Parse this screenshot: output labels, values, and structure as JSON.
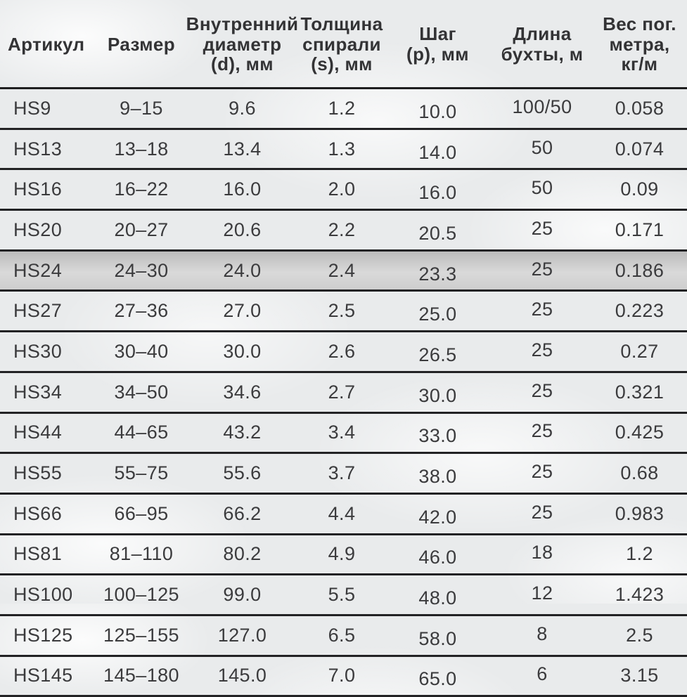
{
  "page": {
    "background_color": "#e9ebec",
    "line_color": "#1e1e1f",
    "text_color": "#3b3b3d",
    "highlight_row_color": "#c9c9c9"
  },
  "table": {
    "columns": [
      {
        "id": "article",
        "label": "Артикул"
      },
      {
        "id": "size",
        "label": "Размер"
      },
      {
        "id": "inner-diameter",
        "label": "Внутренний\nдиаметр\n(d), мм"
      },
      {
        "id": "spiral-thickness",
        "label": "Толщина\nспирали\n(s), мм"
      },
      {
        "id": "pitch",
        "label": "Шаг\n(p), мм"
      },
      {
        "id": "coil-length",
        "label": "Длина\nбухты, м"
      },
      {
        "id": "weight-per-meter",
        "label": "Вес пог.\nметра,\nкг/м"
      }
    ],
    "highlighted_row": "HS24",
    "rows": [
      [
        "HS9",
        "9–15",
        "9.6",
        "1.2",
        "10.0",
        "100/50",
        "0.058"
      ],
      [
        "HS13",
        "13–18",
        "13.4",
        "1.3",
        "14.0",
        "50",
        "0.074"
      ],
      [
        "HS16",
        "16–22",
        "16.0",
        "2.0",
        "16.0",
        "50",
        "0.09"
      ],
      [
        "HS20",
        "20–27",
        "20.6",
        "2.2",
        "20.5",
        "25",
        "0.171"
      ],
      [
        "HS24",
        "24–30",
        "24.0",
        "2.4",
        "23.3",
        "25",
        "0.186"
      ],
      [
        "HS27",
        "27–36",
        "27.0",
        "2.5",
        "25.0",
        "25",
        "0.223"
      ],
      [
        "HS30",
        "30–40",
        "30.0",
        "2.6",
        "26.5",
        "25",
        "0.27"
      ],
      [
        "HS34",
        "34–50",
        "34.6",
        "2.7",
        "30.0",
        "25",
        "0.321"
      ],
      [
        "HS44",
        "44–65",
        "43.2",
        "3.4",
        "33.0",
        "25",
        "0.425"
      ],
      [
        "HS55",
        "55–75",
        "55.6",
        "3.7",
        "38.0",
        "25",
        "0.68"
      ],
      [
        "HS66",
        "66–95",
        "66.2",
        "4.4",
        "42.0",
        "25",
        "0.983"
      ],
      [
        "HS81",
        "81–110",
        "80.2",
        "4.9",
        "46.0",
        "18",
        "1.2"
      ],
      [
        "HS100",
        "100–125",
        "99.0",
        "5.5",
        "48.0",
        "12",
        "1.423"
      ],
      [
        "HS125",
        "125–155",
        "127.0",
        "6.5",
        "58.0",
        "8",
        "2.5"
      ],
      [
        "HS145",
        "145–180",
        "145.0",
        "7.0",
        "65.0",
        "6",
        "3.15"
      ]
    ]
  }
}
